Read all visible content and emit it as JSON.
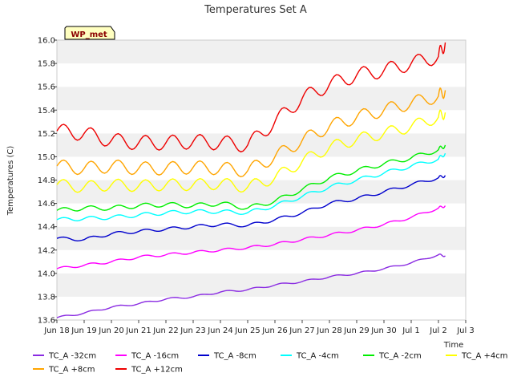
{
  "chart_data": {
    "type": "line",
    "title": "Temperatures Set A",
    "ylabel": "Temperatures (C)",
    "xlabel": "Time",
    "badge": "WP_met",
    "ylim": [
      13.6,
      16.0
    ],
    "xlim": [
      "2020-06-18",
      "2020-07-03"
    ],
    "yticks": [
      "13.6",
      "13.8",
      "14.0",
      "14.2",
      "14.4",
      "14.6",
      "14.8",
      "15.0",
      "15.2",
      "15.4",
      "15.6",
      "15.8",
      "16.0"
    ],
    "xticks": [
      "Jun 18",
      "Jun 19",
      "Jun 20",
      "Jun 21",
      "Jun 22",
      "Jun 23",
      "Jun 24",
      "Jun 25",
      "Jun 26",
      "Jun 27",
      "Jun 28",
      "Jun 29",
      "Jun 30",
      "Jul 1",
      "Jul 2",
      "Jul 3"
    ],
    "grid": "horizontal bands",
    "legend_position": "bottom",
    "x": [
      "2020-06-18",
      "2020-06-19",
      "2020-06-20",
      "2020-06-21",
      "2020-06-22",
      "2020-06-23",
      "2020-06-24",
      "2020-06-25",
      "2020-06-26",
      "2020-06-27",
      "2020-06-28",
      "2020-06-29",
      "2020-06-30",
      "2020-07-01",
      "2020-07-02",
      "2020-07-02 06:00"
    ],
    "series": [
      {
        "name": "TC_A -32cm",
        "color": "#8a2be2",
        "values": [
          13.62,
          13.66,
          13.71,
          13.74,
          13.78,
          13.8,
          13.84,
          13.86,
          13.9,
          13.93,
          13.97,
          14.0,
          14.04,
          14.09,
          14.16,
          14.15
        ]
      },
      {
        "name": "TC_A -16cm",
        "color": "#ff00ff",
        "values": [
          14.04,
          14.07,
          14.1,
          14.14,
          14.16,
          14.18,
          14.2,
          14.22,
          14.25,
          14.29,
          14.33,
          14.37,
          14.42,
          14.48,
          14.56,
          14.58
        ]
      },
      {
        "name": "TC_A -8cm",
        "color": "#0000cd",
        "values": [
          14.3,
          14.29,
          14.34,
          14.36,
          14.38,
          14.4,
          14.42,
          14.41,
          14.46,
          14.52,
          14.6,
          14.64,
          14.7,
          14.76,
          14.82,
          14.84
        ]
      },
      {
        "name": "TC_A -4cm",
        "color": "#00ffff",
        "values": [
          14.46,
          14.47,
          14.48,
          14.5,
          14.52,
          14.53,
          14.53,
          14.52,
          14.58,
          14.66,
          14.74,
          14.8,
          14.86,
          14.92,
          14.98,
          15.03
        ]
      },
      {
        "name": "TC_A -2cm",
        "color": "#00ee00",
        "values": [
          14.54,
          14.56,
          14.56,
          14.58,
          14.59,
          14.58,
          14.6,
          14.56,
          14.62,
          14.72,
          14.82,
          14.88,
          14.94,
          14.99,
          15.06,
          15.1
        ]
      },
      {
        "name": "TC_A +4cm",
        "color": "#ffff00",
        "values": [
          14.76,
          14.74,
          14.76,
          14.75,
          14.76,
          14.76,
          14.77,
          14.74,
          14.82,
          14.96,
          15.08,
          15.15,
          15.2,
          15.26,
          15.34,
          15.38
        ]
      },
      {
        "name": "TC_A +8cm",
        "color": "#ffa500",
        "values": [
          14.92,
          14.9,
          14.92,
          14.9,
          14.9,
          14.91,
          14.9,
          14.88,
          15.0,
          15.14,
          15.26,
          15.34,
          15.4,
          15.46,
          15.52,
          15.57
        ]
      },
      {
        "name": "TC_A +12cm",
        "color": "#ee0000",
        "values": [
          15.22,
          15.2,
          15.14,
          15.12,
          15.12,
          15.13,
          15.12,
          15.1,
          15.3,
          15.5,
          15.62,
          15.7,
          15.74,
          15.8,
          15.86,
          15.98
        ]
      }
    ]
  }
}
